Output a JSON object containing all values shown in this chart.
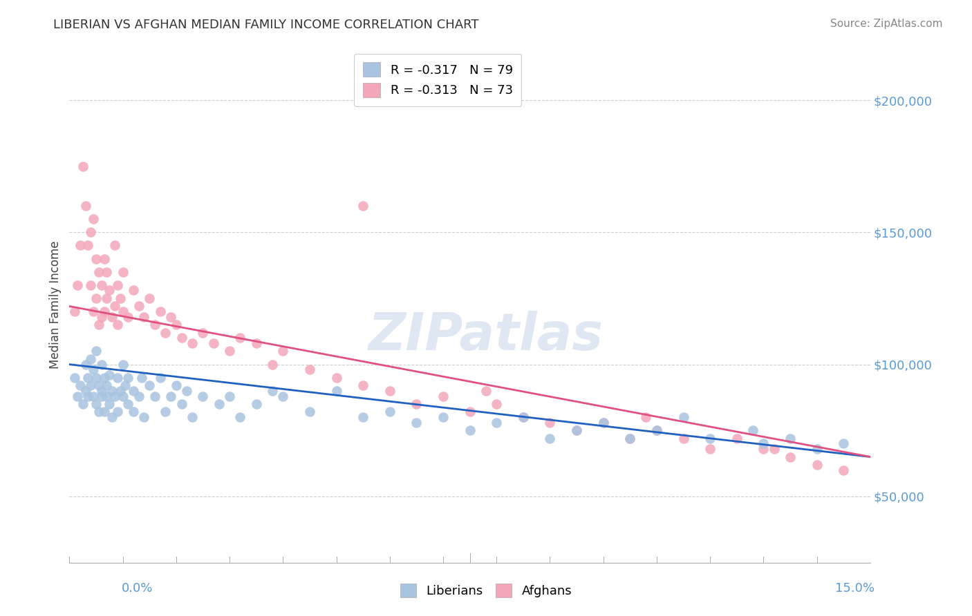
{
  "title": "LIBERIAN VS AFGHAN MEDIAN FAMILY INCOME CORRELATION CHART",
  "source": "Source: ZipAtlas.com",
  "ylabel": "Median Family Income",
  "ytick_labels": [
    "$50,000",
    "$100,000",
    "$150,000",
    "$200,000"
  ],
  "ytick_values": [
    50000,
    100000,
    150000,
    200000
  ],
  "xlim": [
    0.0,
    15.0
  ],
  "ylim": [
    25000,
    220000
  ],
  "liberian_color": "#a8c4e0",
  "afghan_color": "#f4a7b9",
  "liberian_line_color": "#2060c0",
  "afghan_line_color": "#e05080",
  "R_liberian": -0.317,
  "N_liberian": 79,
  "R_afghan": -0.313,
  "N_afghan": 73,
  "watermark": "ZIPatlas",
  "lib_line_x0": 0.0,
  "lib_line_y0": 100000,
  "lib_line_x1": 15.0,
  "lib_line_y1": 65000,
  "afg_line_x0": 0.0,
  "afg_line_y0": 122000,
  "afg_line_x1": 15.0,
  "afg_line_y1": 65000,
  "liberian_x": [
    0.1,
    0.15,
    0.2,
    0.25,
    0.3,
    0.3,
    0.35,
    0.35,
    0.4,
    0.4,
    0.45,
    0.45,
    0.5,
    0.5,
    0.5,
    0.55,
    0.55,
    0.6,
    0.6,
    0.6,
    0.65,
    0.65,
    0.7,
    0.7,
    0.75,
    0.75,
    0.8,
    0.8,
    0.85,
    0.9,
    0.9,
    0.95,
    1.0,
    1.0,
    1.05,
    1.1,
    1.1,
    1.2,
    1.2,
    1.3,
    1.35,
    1.4,
    1.5,
    1.6,
    1.7,
    1.8,
    1.9,
    2.0,
    2.1,
    2.2,
    2.3,
    2.5,
    2.8,
    3.0,
    3.2,
    3.5,
    3.8,
    4.0,
    4.5,
    5.0,
    5.5,
    6.0,
    6.5,
    7.0,
    7.5,
    8.0,
    8.5,
    9.0,
    9.5,
    10.0,
    10.5,
    11.0,
    11.5,
    12.0,
    12.8,
    13.0,
    13.5,
    14.0,
    14.5
  ],
  "liberian_y": [
    95000,
    88000,
    92000,
    85000,
    100000,
    90000,
    95000,
    88000,
    102000,
    92000,
    88000,
    98000,
    95000,
    105000,
    85000,
    92000,
    82000,
    90000,
    100000,
    88000,
    95000,
    82000,
    88000,
    92000,
    85000,
    96000,
    90000,
    80000,
    88000,
    95000,
    82000,
    90000,
    88000,
    100000,
    92000,
    85000,
    95000,
    90000,
    82000,
    88000,
    95000,
    80000,
    92000,
    88000,
    95000,
    82000,
    88000,
    92000,
    85000,
    90000,
    80000,
    88000,
    85000,
    88000,
    80000,
    85000,
    90000,
    88000,
    82000,
    90000,
    80000,
    82000,
    78000,
    80000,
    75000,
    78000,
    80000,
    72000,
    75000,
    78000,
    72000,
    75000,
    80000,
    72000,
    75000,
    70000,
    72000,
    68000,
    70000
  ],
  "afghan_x": [
    0.1,
    0.15,
    0.2,
    0.25,
    0.3,
    0.35,
    0.4,
    0.4,
    0.45,
    0.45,
    0.5,
    0.5,
    0.55,
    0.55,
    0.6,
    0.6,
    0.65,
    0.65,
    0.7,
    0.7,
    0.75,
    0.8,
    0.85,
    0.85,
    0.9,
    0.9,
    0.95,
    1.0,
    1.0,
    1.1,
    1.2,
    1.3,
    1.4,
    1.5,
    1.6,
    1.7,
    1.8,
    1.9,
    2.0,
    2.1,
    2.3,
    2.5,
    2.7,
    3.0,
    3.2,
    3.5,
    3.8,
    4.0,
    4.5,
    5.0,
    5.5,
    6.0,
    6.5,
    7.0,
    7.5,
    8.0,
    8.5,
    9.0,
    9.5,
    10.0,
    10.5,
    11.0,
    11.5,
    12.0,
    12.5,
    13.0,
    13.5,
    14.0,
    14.5,
    5.5,
    7.8,
    10.8,
    13.2
  ],
  "afghan_y": [
    120000,
    130000,
    145000,
    175000,
    160000,
    145000,
    150000,
    130000,
    155000,
    120000,
    140000,
    125000,
    135000,
    115000,
    130000,
    118000,
    140000,
    120000,
    135000,
    125000,
    128000,
    118000,
    145000,
    122000,
    130000,
    115000,
    125000,
    120000,
    135000,
    118000,
    128000,
    122000,
    118000,
    125000,
    115000,
    120000,
    112000,
    118000,
    115000,
    110000,
    108000,
    112000,
    108000,
    105000,
    110000,
    108000,
    100000,
    105000,
    98000,
    95000,
    92000,
    90000,
    85000,
    88000,
    82000,
    85000,
    80000,
    78000,
    75000,
    78000,
    72000,
    75000,
    72000,
    68000,
    72000,
    68000,
    65000,
    62000,
    60000,
    160000,
    90000,
    80000,
    68000
  ]
}
